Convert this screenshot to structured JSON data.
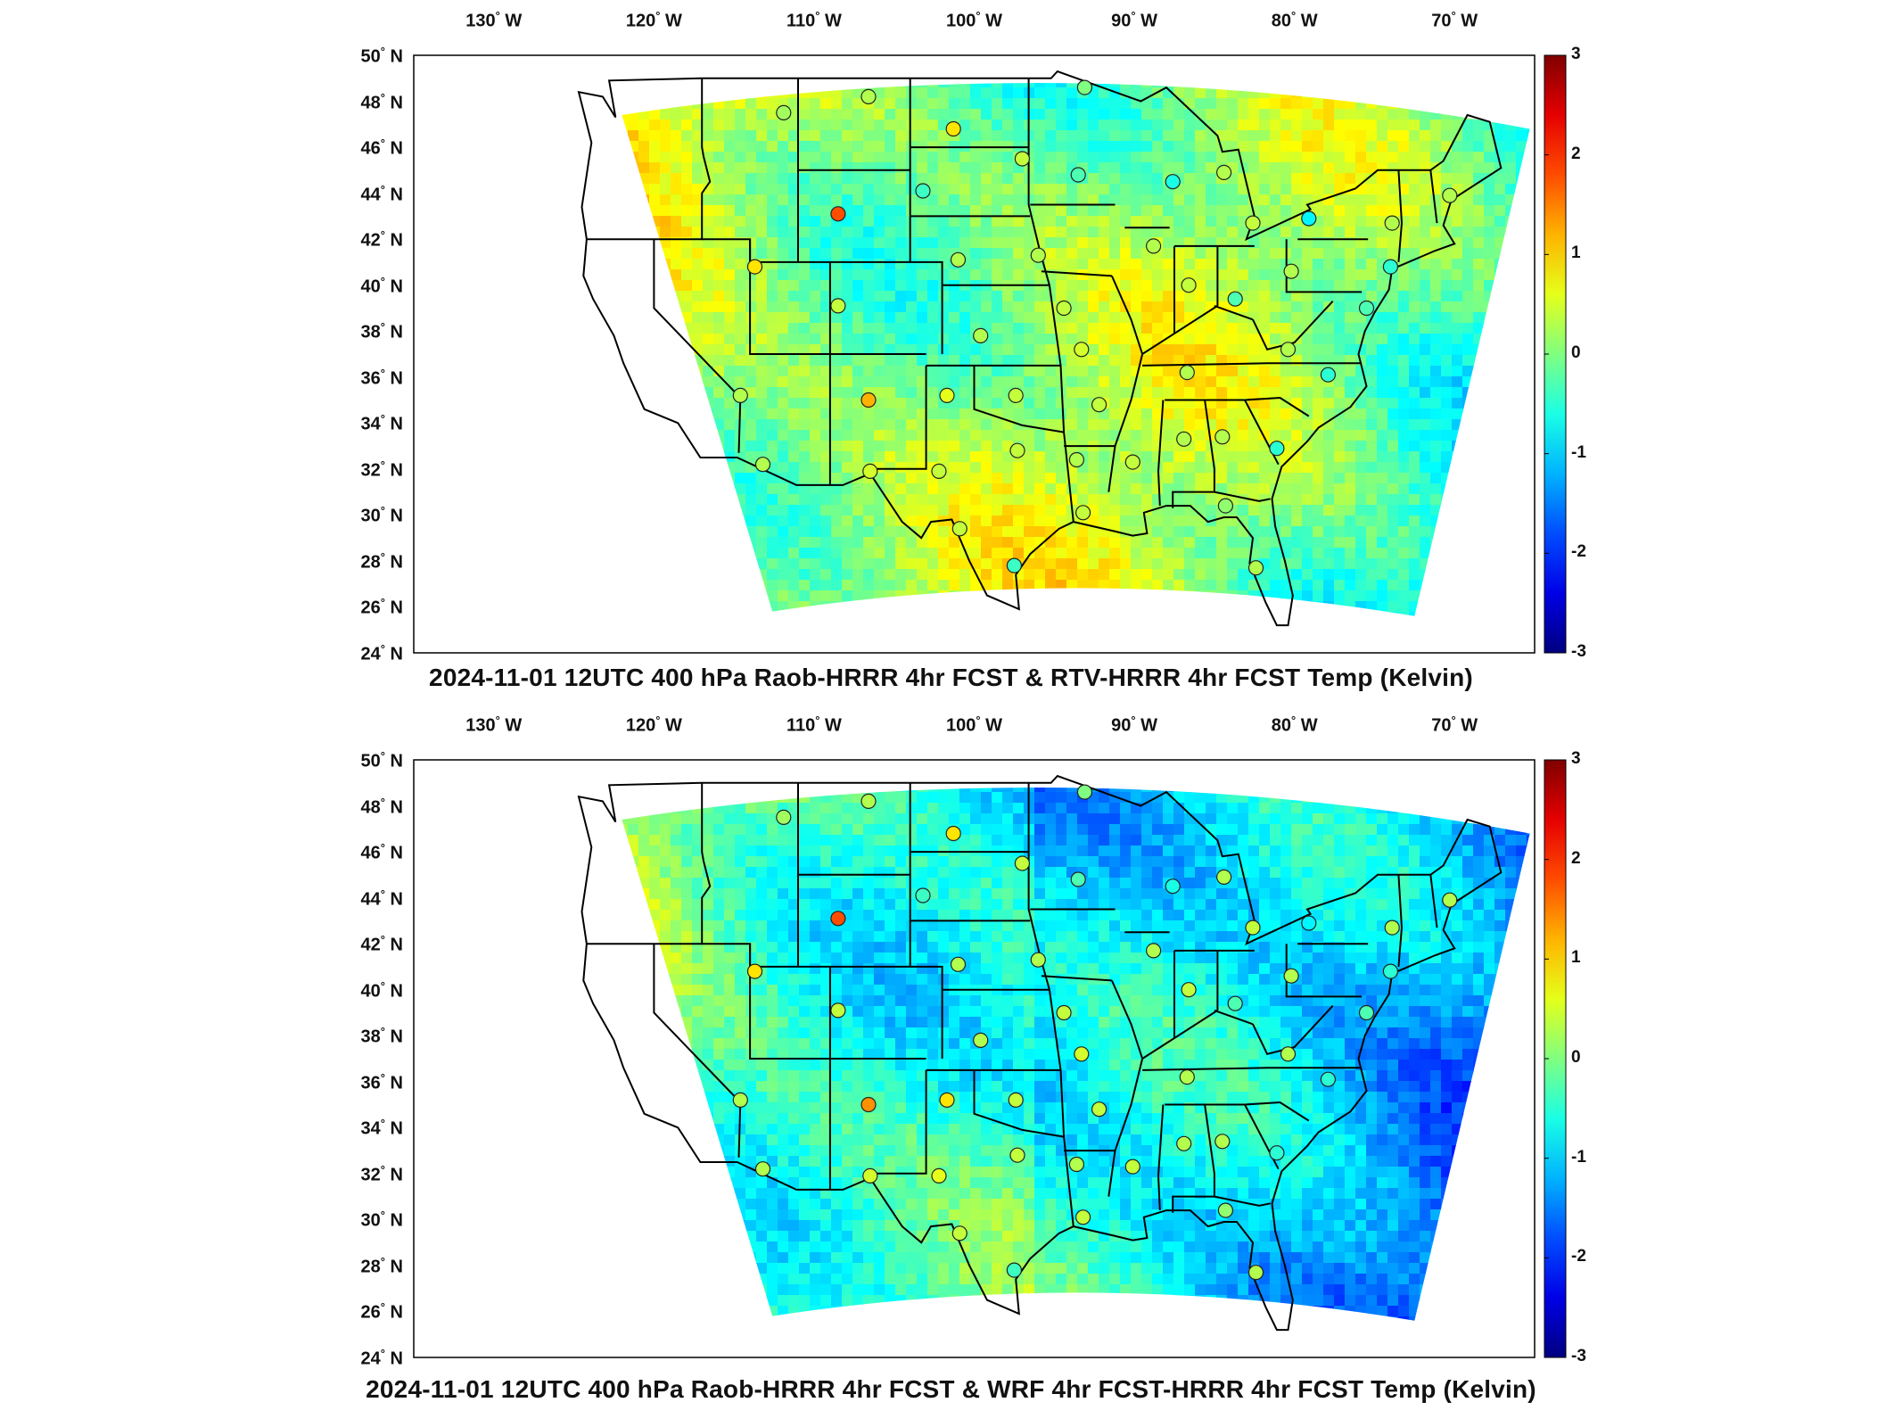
{
  "panels": [
    {
      "id": "top",
      "title": "2024-11-01 12UTC 400 hPa Raob-HRRR 4hr FCST & RTV-HRRR 4hr FCST Temp (Kelvin)",
      "lon_ticks": [
        "130",
        "120",
        "110",
        "100",
        "90",
        "80",
        "70"
      ],
      "lon_suffix": "W",
      "lat_ticks": [
        "50",
        "48",
        "46",
        "44",
        "42",
        "40",
        "38",
        "36",
        "34",
        "32",
        "30",
        "28",
        "26",
        "24"
      ],
      "lat_suffix": "N",
      "colorbar": {
        "min": -3,
        "max": 3,
        "ticks": [
          "3",
          "2",
          "1",
          "0",
          "-1",
          "-2",
          "-3"
        ]
      },
      "field_bias": 0.35,
      "stations": [
        {
          "lon": -111.9,
          "lat": 47.5,
          "v": 0.2
        },
        {
          "lon": -106.6,
          "lat": 48.2,
          "v": 0.3
        },
        {
          "lon": -101.3,
          "lat": 46.8,
          "v": 0.9
        },
        {
          "lon": -97.0,
          "lat": 45.5,
          "v": 0.4
        },
        {
          "lon": -93.1,
          "lat": 48.6,
          "v": 0.0
        },
        {
          "lon": -93.5,
          "lat": 44.8,
          "v": -0.3
        },
        {
          "lon": -87.6,
          "lat": 44.5,
          "v": -0.6
        },
        {
          "lon": -84.4,
          "lat": 44.9,
          "v": 0.3
        },
        {
          "lon": -82.6,
          "lat": 42.7,
          "v": 0.4
        },
        {
          "lon": -79.1,
          "lat": 42.9,
          "v": -0.8
        },
        {
          "lon": -73.9,
          "lat": 42.7,
          "v": 0.3
        },
        {
          "lon": -70.3,
          "lat": 43.9,
          "v": 0.3
        },
        {
          "lon": -103.2,
          "lat": 44.1,
          "v": -0.4
        },
        {
          "lon": -108.5,
          "lat": 43.1,
          "v": 1.8
        },
        {
          "lon": -113.7,
          "lat": 40.8,
          "v": 0.9
        },
        {
          "lon": -108.5,
          "lat": 39.1,
          "v": 0.4
        },
        {
          "lon": -101.0,
          "lat": 41.1,
          "v": 0.3
        },
        {
          "lon": -96.0,
          "lat": 41.3,
          "v": 0.3
        },
        {
          "lon": -88.8,
          "lat": 41.7,
          "v": 0.3
        },
        {
          "lon": -86.6,
          "lat": 40.0,
          "v": 0.4
        },
        {
          "lon": -83.7,
          "lat": 39.4,
          "v": -0.3
        },
        {
          "lon": -80.2,
          "lat": 40.6,
          "v": 0.3
        },
        {
          "lon": -75.5,
          "lat": 39.0,
          "v": -0.3
        },
        {
          "lon": -74.0,
          "lat": 40.8,
          "v": -0.5
        },
        {
          "lon": -94.4,
          "lat": 39.0,
          "v": 0.4
        },
        {
          "lon": -99.6,
          "lat": 37.8,
          "v": 0.3
        },
        {
          "lon": -93.3,
          "lat": 37.2,
          "v": 0.5
        },
        {
          "lon": -86.7,
          "lat": 36.2,
          "v": 0.3
        },
        {
          "lon": -80.4,
          "lat": 37.2,
          "v": 0.3
        },
        {
          "lon": -77.9,
          "lat": 36.1,
          "v": -0.5
        },
        {
          "lon": -114.6,
          "lat": 35.2,
          "v": 0.3
        },
        {
          "lon": -106.6,
          "lat": 35.0,
          "v": 1.2
        },
        {
          "lon": -101.7,
          "lat": 35.2,
          "v": 0.6
        },
        {
          "lon": -97.4,
          "lat": 35.2,
          "v": 0.4
        },
        {
          "lon": -92.2,
          "lat": 34.8,
          "v": 0.4
        },
        {
          "lon": -86.9,
          "lat": 33.3,
          "v": 0.3
        },
        {
          "lon": -84.5,
          "lat": 33.4,
          "v": 0.3
        },
        {
          "lon": -81.1,
          "lat": 32.9,
          "v": -0.5
        },
        {
          "lon": -113.2,
          "lat": 32.2,
          "v": 0.3
        },
        {
          "lon": -106.5,
          "lat": 31.9,
          "v": 0.5
        },
        {
          "lon": -102.2,
          "lat": 31.9,
          "v": 0.4
        },
        {
          "lon": -97.3,
          "lat": 32.8,
          "v": 0.4
        },
        {
          "lon": -93.6,
          "lat": 32.4,
          "v": 0.3
        },
        {
          "lon": -90.1,
          "lat": 32.3,
          "v": 0.4
        },
        {
          "lon": -93.2,
          "lat": 30.1,
          "v": 0.4
        },
        {
          "lon": -84.3,
          "lat": 30.4,
          "v": 0.1
        },
        {
          "lon": -100.9,
          "lat": 29.4,
          "v": 0.4
        },
        {
          "lon": -97.5,
          "lat": 27.8,
          "v": -0.4
        },
        {
          "lon": -82.4,
          "lat": 27.7,
          "v": 0.3
        }
      ]
    },
    {
      "id": "bottom",
      "title": "2024-11-01 12UTC 400 hPa Raob-HRRR 4hr FCST & WRF 4hr FCST-HRRR 4hr FCST Temp (Kelvin)",
      "lon_ticks": [
        "130",
        "120",
        "110",
        "100",
        "90",
        "80",
        "70"
      ],
      "lon_suffix": "W",
      "lat_ticks": [
        "50",
        "48",
        "46",
        "44",
        "42",
        "40",
        "38",
        "36",
        "34",
        "32",
        "30",
        "28",
        "26",
        "24"
      ],
      "lat_suffix": "N",
      "colorbar": {
        "min": -3,
        "max": 3,
        "ticks": [
          "3",
          "2",
          "1",
          "0",
          "-1",
          "-2",
          "-3"
        ]
      },
      "field_bias": -0.25,
      "stations": [
        {
          "lon": -111.9,
          "lat": 47.5,
          "v": 0.2
        },
        {
          "lon": -106.6,
          "lat": 48.2,
          "v": 0.3
        },
        {
          "lon": -101.3,
          "lat": 46.8,
          "v": 0.9
        },
        {
          "lon": -97.0,
          "lat": 45.5,
          "v": 0.4
        },
        {
          "lon": -93.1,
          "lat": 48.6,
          "v": 0.0
        },
        {
          "lon": -93.5,
          "lat": 44.8,
          "v": -0.3
        },
        {
          "lon": -87.6,
          "lat": 44.5,
          "v": -0.6
        },
        {
          "lon": -84.4,
          "lat": 44.9,
          "v": 0.3
        },
        {
          "lon": -82.6,
          "lat": 42.7,
          "v": 0.4
        },
        {
          "lon": -79.1,
          "lat": 42.9,
          "v": -0.8
        },
        {
          "lon": -73.9,
          "lat": 42.7,
          "v": 0.3
        },
        {
          "lon": -70.3,
          "lat": 43.9,
          "v": 0.3
        },
        {
          "lon": -103.2,
          "lat": 44.1,
          "v": -0.4
        },
        {
          "lon": -108.5,
          "lat": 43.1,
          "v": 1.8
        },
        {
          "lon": -113.7,
          "lat": 40.8,
          "v": 0.9
        },
        {
          "lon": -108.5,
          "lat": 39.1,
          "v": 0.4
        },
        {
          "lon": -101.0,
          "lat": 41.1,
          "v": 0.3
        },
        {
          "lon": -96.0,
          "lat": 41.3,
          "v": 0.3
        },
        {
          "lon": -88.8,
          "lat": 41.7,
          "v": 0.3
        },
        {
          "lon": -86.6,
          "lat": 40.0,
          "v": 0.4
        },
        {
          "lon": -83.7,
          "lat": 39.4,
          "v": -0.3
        },
        {
          "lon": -80.2,
          "lat": 40.6,
          "v": 0.3
        },
        {
          "lon": -75.5,
          "lat": 39.0,
          "v": -0.3
        },
        {
          "lon": -74.0,
          "lat": 40.8,
          "v": -0.5
        },
        {
          "lon": -94.4,
          "lat": 39.0,
          "v": 0.4
        },
        {
          "lon": -99.6,
          "lat": 37.8,
          "v": 0.3
        },
        {
          "lon": -93.3,
          "lat": 37.2,
          "v": 0.5
        },
        {
          "lon": -86.7,
          "lat": 36.2,
          "v": 0.3
        },
        {
          "lon": -80.4,
          "lat": 37.2,
          "v": 0.3
        },
        {
          "lon": -77.9,
          "lat": 36.1,
          "v": -0.5
        },
        {
          "lon": -114.6,
          "lat": 35.2,
          "v": 0.3
        },
        {
          "lon": -106.6,
          "lat": 35.0,
          "v": 1.4
        },
        {
          "lon": -101.7,
          "lat": 35.2,
          "v": 0.9
        },
        {
          "lon": -97.4,
          "lat": 35.2,
          "v": 0.4
        },
        {
          "lon": -92.2,
          "lat": 34.8,
          "v": 0.4
        },
        {
          "lon": -86.9,
          "lat": 33.3,
          "v": 0.3
        },
        {
          "lon": -84.5,
          "lat": 33.4,
          "v": 0.3
        },
        {
          "lon": -81.1,
          "lat": 32.9,
          "v": -0.5
        },
        {
          "lon": -113.2,
          "lat": 32.2,
          "v": 0.3
        },
        {
          "lon": -106.5,
          "lat": 31.9,
          "v": 0.5
        },
        {
          "lon": -102.2,
          "lat": 31.9,
          "v": 0.6
        },
        {
          "lon": -97.3,
          "lat": 32.8,
          "v": 0.4
        },
        {
          "lon": -93.6,
          "lat": 32.4,
          "v": 0.3
        },
        {
          "lon": -90.1,
          "lat": 32.3,
          "v": 0.4
        },
        {
          "lon": -93.2,
          "lat": 30.1,
          "v": 0.4
        },
        {
          "lon": -84.3,
          "lat": 30.4,
          "v": 0.1
        },
        {
          "lon": -100.9,
          "lat": 29.4,
          "v": 0.4
        },
        {
          "lon": -97.5,
          "lat": 27.8,
          "v": -0.4
        },
        {
          "lon": -82.4,
          "lat": 27.7,
          "v": 0.3
        }
      ]
    }
  ],
  "colors": {
    "frame": "#000000",
    "station_outline": "#222222",
    "background": "#ffffff"
  }
}
